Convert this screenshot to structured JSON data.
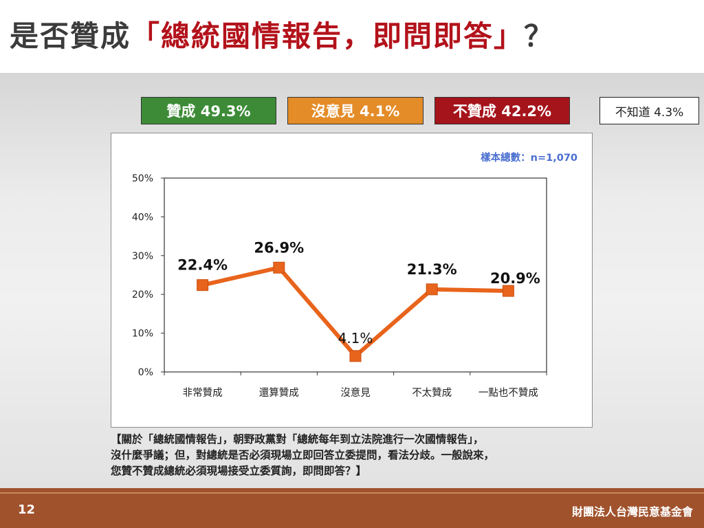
{
  "title": {
    "part1": "是否贊成",
    "part2": "「總統國情報告，即問即答」",
    "part3": "？"
  },
  "summary": {
    "agree": "贊成 49.3%",
    "neutral": "沒意見 4.1%",
    "disagree": "不贊成 42.2%",
    "unknown": "不知道 4.3%"
  },
  "sample": "樣本總數：n=1,070",
  "question": [
    "【關於「總統國情報告」，朝野政黨對「總統每年到立法院進行一次國情報告」，",
    "沒什麼爭議；但，對總統是否必須現場立即回答立委提問，看法分歧。一般說來，",
    "您贊不贊成總統必須現場接受立委質詢，即問即答？】"
  ],
  "footer": {
    "page": "12",
    "org": "財團法人台灣民意基金會"
  },
  "colors": {
    "agree": "#3d8b37",
    "neutral": "#e48c28",
    "disagree": "#a5141b",
    "line": "#e8641c",
    "sample_text": "#4a6fd0"
  },
  "chart_data": {
    "type": "line",
    "categories": [
      "非常贊成",
      "還算贊成",
      "沒意見",
      "不太贊成",
      "一點也不贊成"
    ],
    "values": [
      22.4,
      26.9,
      4.1,
      21.3,
      20.9
    ],
    "value_labels": [
      "22.4%",
      "26.9%",
      "4.1%",
      "21.3%",
      "20.9%"
    ],
    "y_ticks": [
      "0%",
      "10%",
      "20%",
      "30%",
      "40%",
      "50%"
    ],
    "ylim": [
      0,
      50
    ],
    "grid": false
  }
}
